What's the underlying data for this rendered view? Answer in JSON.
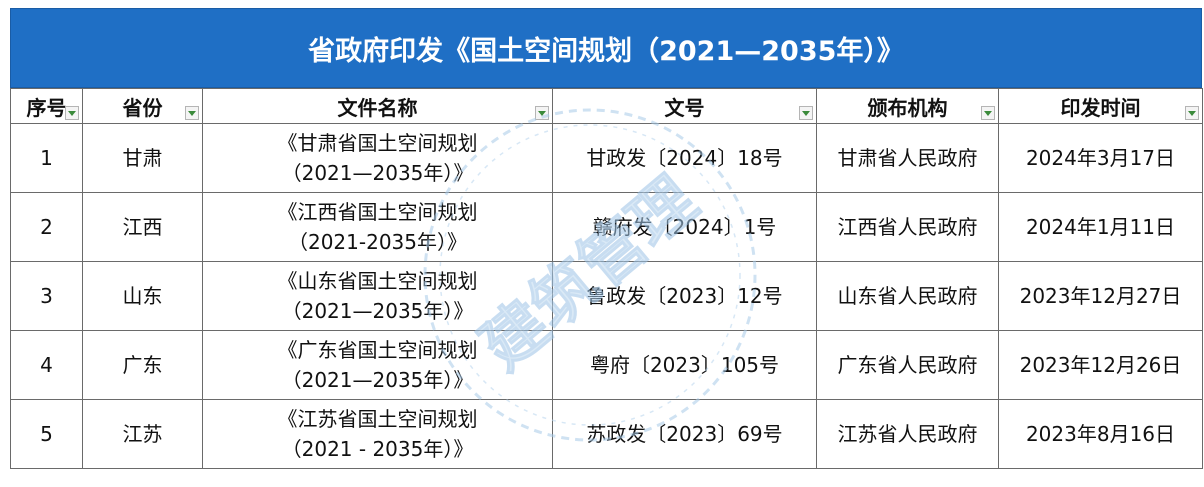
{
  "title": "省政府印发《国土空间规划（2021—2035年）》",
  "columns": [
    "序号",
    "省份",
    "文件名称",
    "文号",
    "颁布机构",
    "印发时间"
  ],
  "rows": [
    {
      "no": "1",
      "province": "甘肃",
      "name_line1": "《甘肃省国土空间规划",
      "name_line2": "（2021—2035年）》",
      "doc_no": "甘政发〔2024〕18号",
      "issuer": "甘肃省人民政府",
      "date": "2024年3月17日"
    },
    {
      "no": "2",
      "province": "江西",
      "name_line1": "《江西省国土空间规划",
      "name_line2": "（2021-2035年）》",
      "doc_no": "赣府发〔2024〕1号",
      "issuer": "江西省人民政府",
      "date": "2024年1月11日"
    },
    {
      "no": "3",
      "province": "山东",
      "name_line1": "《山东省国土空间规划",
      "name_line2": "（2021—2035年）》",
      "doc_no": "鲁政发〔2023〕12号",
      "issuer": "山东省人民政府",
      "date": "2023年12月27日"
    },
    {
      "no": "4",
      "province": "广东",
      "name_line1": "《广东省国土空间规划",
      "name_line2": "（2021—2035年）》",
      "doc_no": "粤府〔2023〕105号",
      "issuer": "广东省人民政府",
      "date": "2023年12月26日"
    },
    {
      "no": "5",
      "province": "江苏",
      "name_line1": "《江苏省国土空间规划",
      "name_line2": "（2021 - 2035年）》",
      "doc_no": "苏政发〔2023〕69号",
      "issuer": "江苏省人民政府",
      "date": "2023年8月16日"
    }
  ],
  "watermark": {
    "text": "建筑管理",
    "color": "#9cc3e6"
  },
  "colors": {
    "title_bg": "#1f6fc5",
    "border": "#6a6a6a"
  }
}
